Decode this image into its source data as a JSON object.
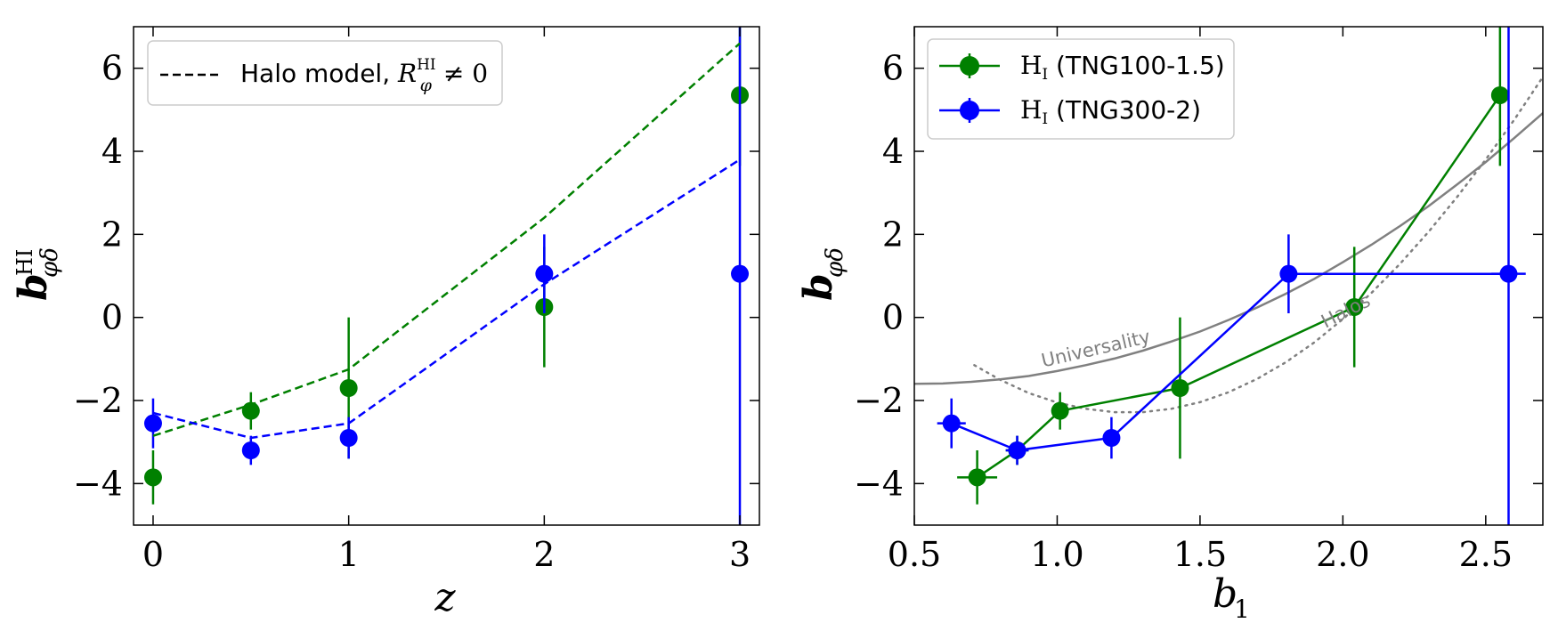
{
  "chart_data": [
    {
      "type": "line",
      "panel": "left",
      "xlabel": "z",
      "ylabel_main": "b",
      "ylabel_sub": "φδ",
      "ylabel_sup": "HI",
      "xlim": [
        -0.1,
        3.1
      ],
      "ylim": [
        -5,
        7
      ],
      "xticks": [
        0,
        1,
        2,
        3
      ],
      "xtick_labels": [
        "0",
        "1",
        "2",
        "3"
      ],
      "yticks": [
        -4,
        -2,
        0,
        2,
        4,
        6
      ],
      "ytick_labels": [
        "−4",
        "−2",
        "0",
        "2",
        "4",
        "6"
      ],
      "legend": {
        "position": "top-left",
        "entries": [
          {
            "label": "Halo model, ",
            "math": "R",
            "math_sub": "φ",
            "math_sup": "HI",
            "math_tail": " ≠ 0",
            "style": "dashed",
            "color": "#000000"
          }
        ]
      },
      "series": [
        {
          "name": "HI (TNG100-1.5) data",
          "color": "#008000",
          "kind": "points",
          "x": [
            0,
            0.5,
            1,
            2,
            3
          ],
          "y": [
            -3.85,
            -2.25,
            -1.7,
            0.25,
            5.35
          ],
          "yerr": [
            0.65,
            0.45,
            1.7,
            1.45,
            1.7
          ]
        },
        {
          "name": "HI (TNG300-2) data",
          "color": "#0000ff",
          "kind": "points",
          "x": [
            0,
            0.5,
            1,
            2,
            3
          ],
          "y": [
            -2.55,
            -3.2,
            -2.9,
            1.05,
            1.05
          ],
          "yerr": [
            0.6,
            0.35,
            0.5,
            0.95,
            8
          ]
        },
        {
          "name": "Halo model (TNG100-1.5)",
          "color": "#008000",
          "kind": "dashed",
          "x": [
            0,
            0.5,
            1,
            2,
            3
          ],
          "y": [
            -2.85,
            -2.1,
            -1.25,
            2.4,
            6.6
          ]
        },
        {
          "name": "Halo model (TNG300-2)",
          "color": "#0000ff",
          "kind": "dashed",
          "x": [
            0,
            0.5,
            1,
            2,
            3
          ],
          "y": [
            -2.3,
            -2.9,
            -2.55,
            0.8,
            3.8
          ]
        }
      ]
    },
    {
      "type": "line",
      "panel": "right",
      "xlabel_main": "b",
      "xlabel_sub": "1",
      "ylabel_main": "b",
      "ylabel_sub": "φδ",
      "xlim": [
        0.5,
        2.7
      ],
      "ylim": [
        -5,
        7
      ],
      "xticks": [
        0.5,
        1.0,
        1.5,
        2.0,
        2.5
      ],
      "xtick_labels": [
        "0.5",
        "1.0",
        "1.5",
        "2.0",
        "2.5"
      ],
      "yticks": [
        -4,
        -2,
        0,
        2,
        4,
        6
      ],
      "ytick_labels": [
        "−4",
        "−2",
        "0",
        "2",
        "4",
        "6"
      ],
      "legend": {
        "position": "top-left",
        "entries": [
          {
            "label": " (TNG100-1.5)",
            "math": "H",
            "math_sub": "I",
            "color": "#008000"
          },
          {
            "label": " (TNG300-2)",
            "math": "H",
            "math_sub": "I",
            "color": "#0000ff"
          }
        ]
      },
      "series": [
        {
          "name": "HI (TNG100-1.5)",
          "color": "#008000",
          "x": [
            0.72,
            0.86,
            1.01,
            1.43,
            2.04,
            2.55
          ],
          "y": [
            -3.85,
            -3.2,
            -2.25,
            -1.7,
            0.25,
            5.35
          ],
          "xerr": [
            0.07,
            0.04,
            0.03,
            0,
            0,
            0.02
          ],
          "yerr": [
            0.65,
            0.35,
            0.45,
            1.7,
            1.45,
            1.7
          ]
        },
        {
          "name": "HI (TNG300-2)",
          "color": "#0000ff",
          "x": [
            0.63,
            0.86,
            1.19,
            1.81,
            2.58
          ],
          "y": [
            -2.55,
            -3.2,
            -2.9,
            1.05,
            1.05
          ],
          "xerr": [
            0.05,
            0.04,
            0.02,
            0.01,
            0.06
          ],
          "yerr": [
            0.6,
            0.35,
            0.5,
            0.95,
            8
          ]
        }
      ],
      "reference_curves": [
        {
          "name": "Universality",
          "label": "Universality",
          "color": "#808080",
          "style": "solid",
          "x": [
            0.5,
            0.6,
            0.7,
            0.8,
            0.9,
            1.0,
            1.1,
            1.2,
            1.3,
            1.4,
            1.5,
            1.6,
            1.7,
            1.8,
            1.9,
            2.0,
            2.1,
            2.2,
            2.3,
            2.4,
            2.5,
            2.6,
            2.7
          ],
          "y": [
            -1.6,
            -1.59,
            -1.55,
            -1.49,
            -1.41,
            -1.29,
            -1.15,
            -0.99,
            -0.8,
            -0.58,
            -0.34,
            -0.06,
            0.24,
            0.57,
            0.93,
            1.33,
            1.75,
            2.2,
            2.68,
            3.2,
            3.74,
            4.32,
            4.92
          ]
        },
        {
          "name": "Halos",
          "label": "Halos",
          "color": "#808080",
          "style": "dotted",
          "x": [
            0.71,
            0.8,
            0.9,
            1.0,
            1.1,
            1.2,
            1.3,
            1.4,
            1.5,
            1.6,
            1.7,
            1.8,
            1.9,
            2.0,
            2.1,
            2.2,
            2.3,
            2.4,
            2.5,
            2.6,
            2.7
          ],
          "y": [
            -1.15,
            -1.5,
            -1.82,
            -2.05,
            -2.2,
            -2.28,
            -2.28,
            -2.2,
            -2.04,
            -1.8,
            -1.48,
            -1.08,
            -0.6,
            -0.04,
            0.59,
            1.29,
            2.06,
            2.9,
            3.8,
            4.76,
            5.79
          ]
        }
      ]
    }
  ]
}
